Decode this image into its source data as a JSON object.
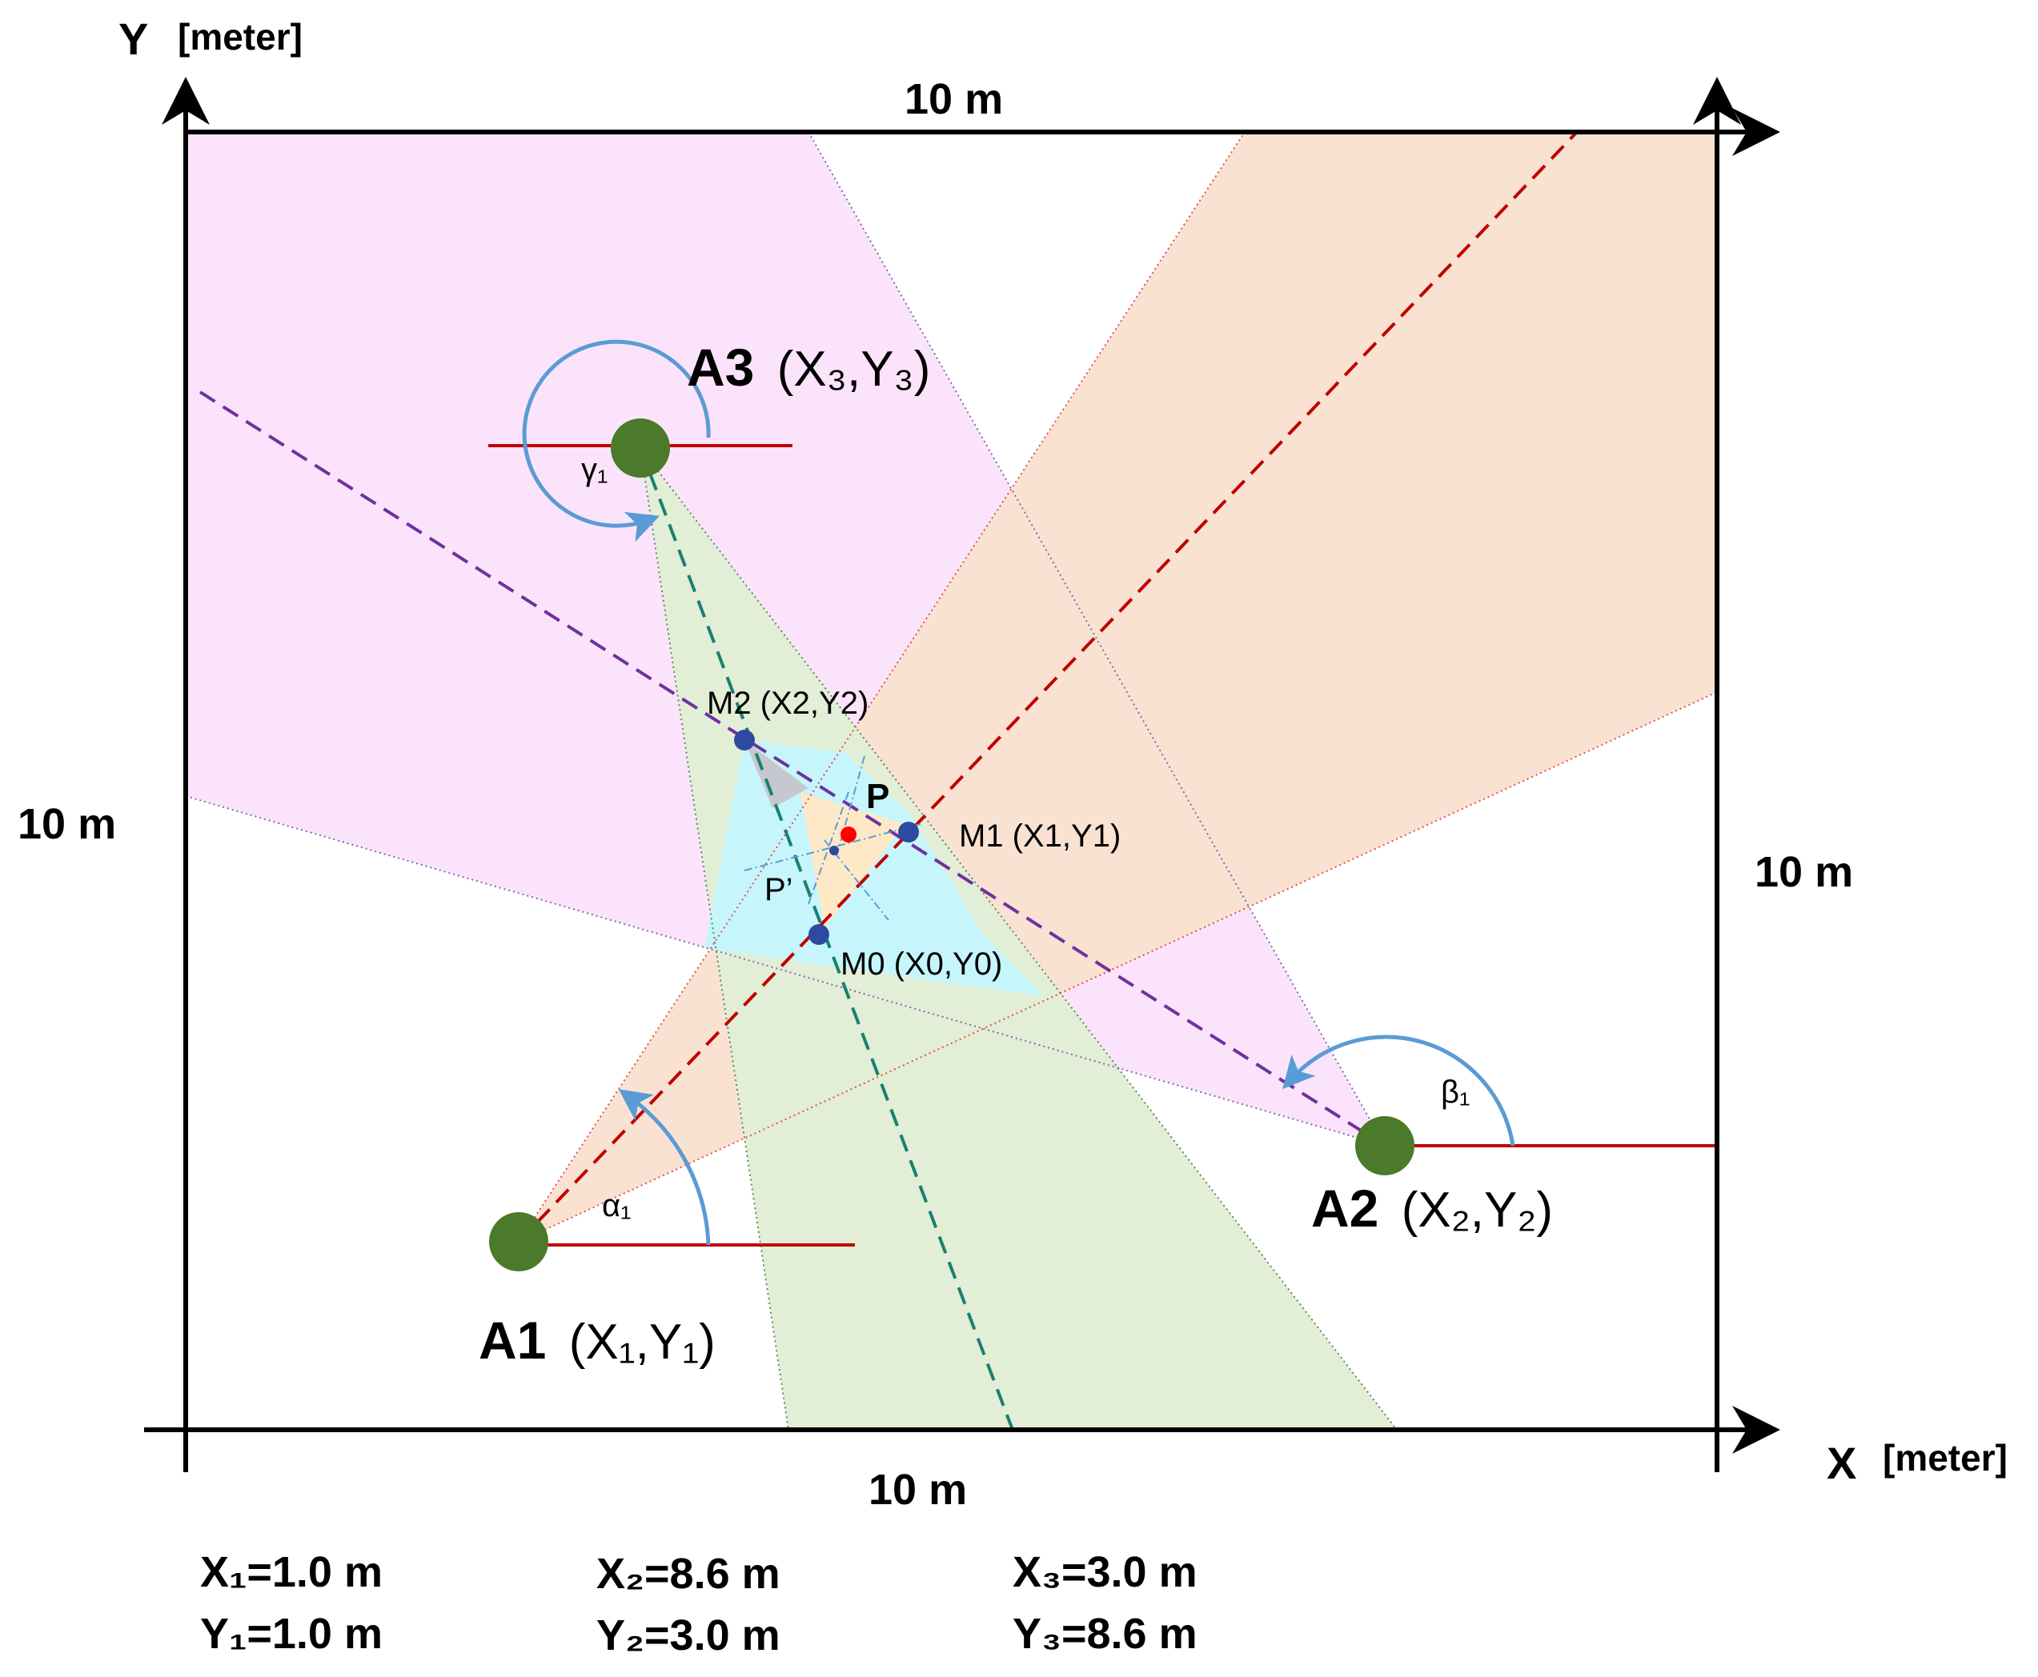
{
  "axes": {
    "y_label": "Y",
    "y_unit": "[meter]",
    "x_label": "X",
    "x_unit": "[meter]",
    "top_dim": "10 m",
    "bottom_dim": "10 m",
    "left_dim": "10 m",
    "right_dim": "10 m"
  },
  "anchors": {
    "a1": {
      "name": "A1",
      "coord": "(X₁,Y₁)",
      "angle": "α₁"
    },
    "a2": {
      "name": "A2",
      "coord": "(X₂,Y₂)",
      "angle": "β₁"
    },
    "a3": {
      "name": "A3",
      "coord": "(X₃,Y₃)",
      "angle": "γ₁"
    }
  },
  "points": {
    "m2": "M2 (X2,Y2)",
    "m1": "M1 (X1,Y1)",
    "m0": "M0 (X0,Y0)",
    "p": "P",
    "p_prime": "P’"
  },
  "values": {
    "x1": "X₁=1.0 m",
    "y1": "Y₁=1.0 m",
    "x2": "X₂=8.6 m",
    "y2": "Y₂=3.0 m",
    "x3": "X₃=3.0 m",
    "y3": "Y₃=8.6 m"
  },
  "colors": {
    "pink_region": "#fbe4fb",
    "orange_region": "#f9e2d2",
    "green_region": "#e2eed6",
    "cyan_region": "#c6f6fb",
    "yellow_region": "#fde9c7",
    "anchor_fill": "#4a7a2a",
    "red_line": "#c00000",
    "purple_line": "#7030a0",
    "teal_line": "#1a8070",
    "blue_arrow": "#5b9bd5",
    "measure_point": "#2e4aa0",
    "true_point": "#ff0000"
  }
}
